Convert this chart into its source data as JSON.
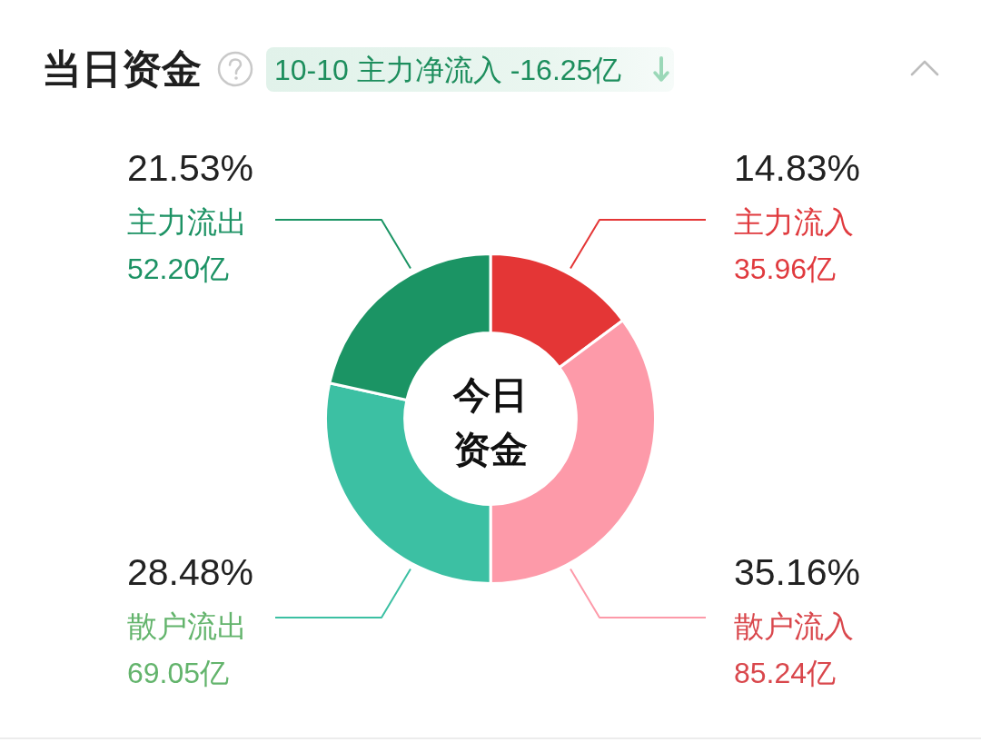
{
  "chart_data": {
    "type": "donut",
    "title": "当日资金",
    "subtitle": "10-10 主力净流入 -16.25亿",
    "categories": [
      "主力流入",
      "散户流入",
      "散户流出",
      "主力流出"
    ],
    "values": [
      35.96,
      85.24,
      69.05,
      52.2
    ],
    "value_labels": [
      "35.96亿",
      "85.24亿",
      "69.05亿",
      "52.20亿"
    ],
    "colors": [
      "#e43636",
      "#fd9aa9",
      "#3cc0a3",
      "#1b9464"
    ],
    "annotations": [
      {
        "text": "14.83%",
        "x": "主力流入"
      },
      {
        "text": "35.16%",
        "x": "散户流入"
      },
      {
        "text": "28.48%",
        "x": "散户流出"
      },
      {
        "text": "21.53%",
        "x": "主力流出"
      },
      "今日资金"
    ]
  }
}
